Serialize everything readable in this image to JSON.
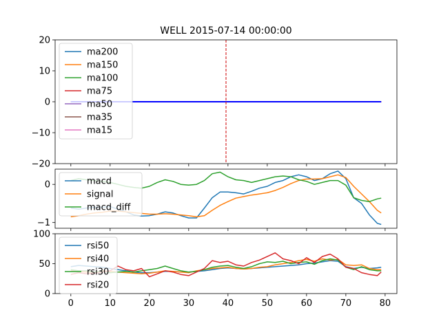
{
  "chart_data": [
    {
      "type": "line",
      "title": "WELL 2015-07-14 00:00:00",
      "xlim": [
        -4,
        83
      ],
      "ylim": [
        -20,
        20
      ],
      "yticks": [
        -20,
        -10,
        0,
        10,
        20
      ],
      "vline": {
        "x": 39.5,
        "color": "#d62728",
        "style": "dashed"
      },
      "legend_position": "upper-left",
      "series": [
        {
          "name": "ma200",
          "color": "#1f77b4",
          "x": [
            0,
            79
          ],
          "y": [
            0,
            0
          ]
        },
        {
          "name": "ma150",
          "color": "#ff7f0e",
          "x": [
            0,
            79
          ],
          "y": [
            0,
            0
          ]
        },
        {
          "name": "ma100",
          "color": "#2ca02c",
          "x": [
            0,
            79
          ],
          "y": [
            0,
            0
          ]
        },
        {
          "name": "ma75",
          "color": "#d62728",
          "x": [
            0,
            79
          ],
          "y": [
            0,
            0
          ]
        },
        {
          "name": "ma50",
          "color": "#9467bd",
          "x": [
            0,
            79
          ],
          "y": [
            0,
            0
          ]
        },
        {
          "name": "ma35",
          "color": "#8c564b",
          "x": [
            0,
            79
          ],
          "y": [
            0,
            0
          ]
        },
        {
          "name": "ma15",
          "color": "#e377c2",
          "x": [
            0,
            79
          ],
          "y": [
            0,
            0
          ]
        },
        {
          "name": "",
          "color": "#0000ff",
          "x": [
            0,
            79
          ],
          "y": [
            0,
            0
          ]
        }
      ]
    },
    {
      "type": "line",
      "xlim": [
        -4,
        83
      ],
      "ylim": [
        -1.15,
        0.4
      ],
      "yticks": [
        -1,
        0
      ],
      "legend_position": "upper-left",
      "series": [
        {
          "name": "macd",
          "color": "#1f77b4",
          "x": [
            0,
            2,
            4,
            6,
            8,
            10,
            12,
            14,
            16,
            18,
            20,
            22,
            24,
            26,
            28,
            30,
            32,
            34,
            36,
            38,
            40,
            42,
            44,
            46,
            48,
            50,
            52,
            54,
            56,
            58,
            60,
            62,
            64,
            66,
            68,
            70,
            72,
            74,
            76,
            78,
            79
          ],
          "y": [
            -0.62,
            -0.65,
            -0.62,
            -0.6,
            -0.6,
            -0.58,
            -0.65,
            -0.72,
            -0.8,
            -0.83,
            -0.82,
            -0.78,
            -0.72,
            -0.75,
            -0.82,
            -0.88,
            -0.88,
            -0.62,
            -0.35,
            -0.2,
            -0.2,
            -0.22,
            -0.25,
            -0.18,
            -0.1,
            -0.05,
            0.05,
            0.1,
            0.2,
            0.25,
            0.2,
            0.1,
            0.15,
            0.28,
            0.35,
            0.15,
            -0.35,
            -0.5,
            -0.8,
            -1.02,
            -1.05
          ]
        },
        {
          "name": "signal",
          "color": "#ff7f0e",
          "x": [
            0,
            2,
            4,
            6,
            8,
            10,
            12,
            14,
            16,
            18,
            20,
            22,
            24,
            26,
            28,
            30,
            32,
            34,
            36,
            38,
            40,
            42,
            44,
            46,
            48,
            50,
            52,
            54,
            56,
            58,
            60,
            62,
            64,
            66,
            68,
            70,
            72,
            74,
            76,
            78,
            79
          ],
          "y": [
            -0.85,
            -0.82,
            -0.78,
            -0.75,
            -0.73,
            -0.7,
            -0.7,
            -0.72,
            -0.74,
            -0.76,
            -0.78,
            -0.78,
            -0.77,
            -0.78,
            -0.8,
            -0.82,
            -0.85,
            -0.82,
            -0.68,
            -0.55,
            -0.45,
            -0.36,
            -0.32,
            -0.28,
            -0.25,
            -0.22,
            -0.16,
            -0.08,
            0.02,
            0.1,
            0.14,
            0.14,
            0.15,
            0.2,
            0.25,
            0.18,
            -0.05,
            -0.25,
            -0.45,
            -0.68,
            -0.75
          ]
        },
        {
          "name": "macd_diff",
          "color": "#2ca02c",
          "x": [
            0,
            2,
            4,
            6,
            8,
            10,
            12,
            14,
            16,
            18,
            20,
            22,
            24,
            26,
            28,
            30,
            32,
            34,
            36,
            38,
            40,
            42,
            44,
            46,
            48,
            50,
            52,
            54,
            56,
            58,
            60,
            62,
            64,
            66,
            68,
            70,
            72,
            74,
            76,
            78,
            79
          ],
          "y": [
            0.1,
            0.15,
            0.12,
            0.1,
            0.08,
            0.05,
            0.0,
            -0.05,
            -0.08,
            -0.1,
            -0.05,
            0.05,
            0.12,
            0.08,
            0.0,
            -0.02,
            0.0,
            0.1,
            0.28,
            0.32,
            0.2,
            0.12,
            0.1,
            0.05,
            0.1,
            0.15,
            0.2,
            0.22,
            0.2,
            0.12,
            0.08,
            0.0,
            0.05,
            0.1,
            0.1,
            -0.02,
            -0.35,
            -0.42,
            -0.45,
            -0.38,
            -0.36
          ]
        }
      ]
    },
    {
      "type": "line",
      "xlim": [
        -4,
        83
      ],
      "ylim": [
        0,
        100
      ],
      "yticks": [
        0,
        50,
        100
      ],
      "xticks": [
        0,
        10,
        20,
        30,
        40,
        50,
        60,
        70,
        80
      ],
      "legend_position": "upper-left",
      "series": [
        {
          "name": "rsi50",
          "color": "#1f77b4",
          "x": [
            0,
            2,
            4,
            6,
            8,
            10,
            12,
            14,
            16,
            18,
            20,
            22,
            24,
            26,
            28,
            30,
            32,
            34,
            36,
            38,
            40,
            42,
            44,
            46,
            48,
            50,
            52,
            54,
            56,
            58,
            60,
            62,
            64,
            66,
            68,
            70,
            72,
            74,
            76,
            78,
            79
          ],
          "y": [
            45,
            47,
            46,
            45,
            44,
            42,
            40,
            38,
            36,
            35,
            35,
            36,
            37,
            37,
            36,
            36,
            37,
            38,
            40,
            42,
            43,
            42,
            41,
            42,
            43,
            44,
            45,
            46,
            47,
            48,
            50,
            51,
            53,
            55,
            54,
            45,
            42,
            44,
            42,
            43,
            44
          ]
        },
        {
          "name": "rsi40",
          "color": "#ff7f0e",
          "x": [
            0,
            2,
            4,
            6,
            8,
            10,
            12,
            14,
            16,
            18,
            20,
            22,
            24,
            26,
            28,
            30,
            32,
            34,
            36,
            38,
            40,
            42,
            44,
            46,
            48,
            50,
            52,
            54,
            56,
            58,
            60,
            62,
            64,
            66,
            68,
            70,
            72,
            74,
            76,
            78,
            79
          ],
          "y": [
            38,
            37,
            36,
            36,
            38,
            37,
            36,
            35,
            34,
            33,
            34,
            36,
            38,
            37,
            36,
            35,
            38,
            40,
            42,
            43,
            44,
            42,
            41,
            42,
            44,
            45,
            48,
            50,
            52,
            55,
            57,
            54,
            58,
            56,
            57,
            48,
            47,
            48,
            42,
            40,
            40
          ]
        },
        {
          "name": "rsi30",
          "color": "#2ca02c",
          "x": [
            0,
            2,
            4,
            6,
            8,
            10,
            12,
            14,
            16,
            18,
            20,
            22,
            24,
            26,
            28,
            30,
            32,
            34,
            36,
            38,
            40,
            42,
            44,
            46,
            48,
            50,
            52,
            54,
            56,
            58,
            60,
            62,
            64,
            66,
            68,
            70,
            72,
            74,
            76,
            78,
            79
          ],
          "y": [
            40,
            38,
            38,
            36,
            37,
            35,
            36,
            37,
            36,
            38,
            40,
            42,
            46,
            42,
            38,
            36,
            37,
            40,
            44,
            46,
            47,
            44,
            42,
            45,
            50,
            53,
            52,
            54,
            50,
            52,
            53,
            49,
            55,
            58,
            56,
            44,
            40,
            45,
            40,
            38,
            38
          ]
        },
        {
          "name": "rsi20",
          "color": "#d62728",
          "x": [
            0,
            2,
            4,
            6,
            8,
            10,
            12,
            14,
            16,
            18,
            20,
            22,
            24,
            26,
            28,
            30,
            32,
            34,
            36,
            38,
            40,
            42,
            44,
            46,
            48,
            50,
            52,
            54,
            56,
            58,
            60,
            62,
            64,
            66,
            68,
            70,
            72,
            74,
            76,
            78,
            79
          ],
          "y": [
            32,
            35,
            33,
            34,
            36,
            38,
            46,
            40,
            38,
            42,
            28,
            33,
            38,
            36,
            32,
            30,
            36,
            42,
            55,
            52,
            54,
            48,
            46,
            52,
            56,
            62,
            68,
            58,
            55,
            50,
            60,
            52,
            62,
            66,
            58,
            44,
            42,
            35,
            32,
            30,
            36
          ]
        }
      ]
    }
  ]
}
